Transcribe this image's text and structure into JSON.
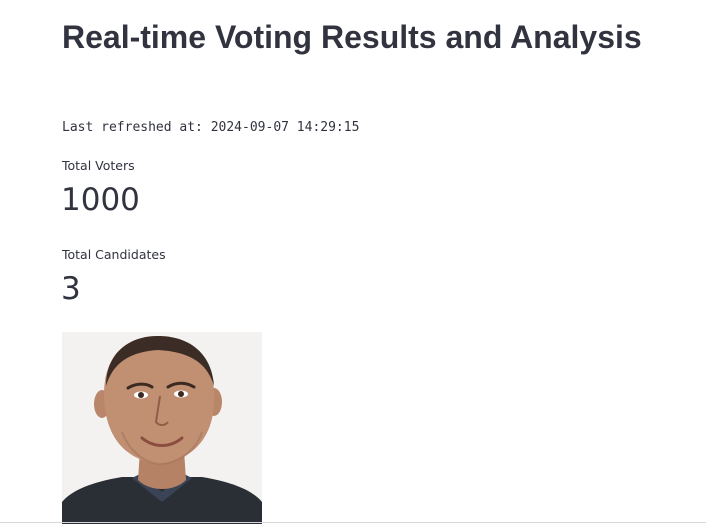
{
  "header": {
    "title": "Real-time Voting Results and Analysis"
  },
  "status": {
    "last_refreshed": "Last refreshed at: 2024-09-07 14:29:15"
  },
  "metrics": [
    {
      "label": "Total Voters",
      "value": "1000"
    },
    {
      "label": "Total Candidates",
      "value": "3"
    }
  ],
  "candidate": {
    "photo_icon": "candidate-portrait-photo"
  },
  "colors": {
    "text": "#31333f",
    "background": "#ffffff"
  }
}
